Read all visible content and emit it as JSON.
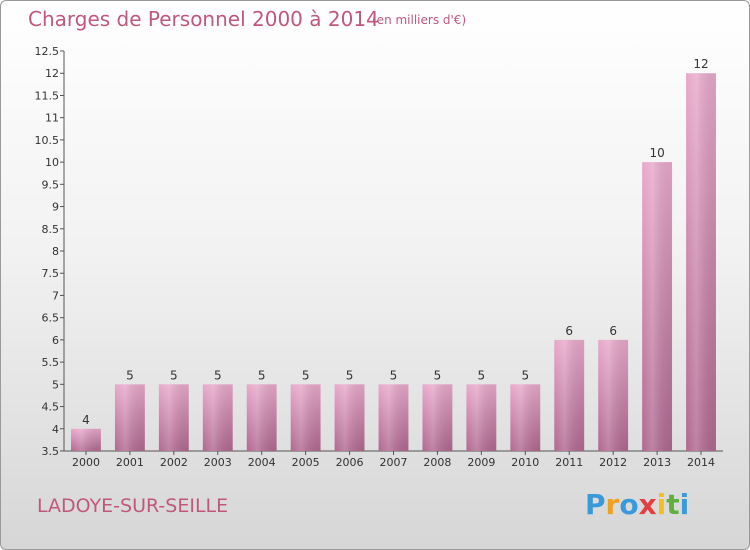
{
  "title": "Charges de Personnel 2000 à 2014",
  "subtitle": "(en milliers d'€)",
  "commune": "LADOYE-SUR-SEILLE",
  "logo": {
    "letters": [
      "P",
      "r",
      "o",
      "x",
      "i",
      "t",
      "i"
    ],
    "colors": [
      "#3a9ad9",
      "#f0a020",
      "#3a9ad9",
      "#e04040",
      "#f0c020",
      "#60b040",
      "#3a9ad9"
    ]
  },
  "colors": {
    "accent": "#c0587a",
    "bar_top": "#e8a9cb",
    "bar_bottom": "#b06890"
  },
  "chart_data": {
    "type": "bar",
    "categories": [
      "2000",
      "2001",
      "2002",
      "2003",
      "2004",
      "2005",
      "2006",
      "2007",
      "2008",
      "2009",
      "2010",
      "2011",
      "2012",
      "2013",
      "2014"
    ],
    "values": [
      4,
      5,
      5,
      5,
      5,
      5,
      5,
      5,
      5,
      5,
      5,
      6,
      6,
      10,
      12
    ],
    "data_labels": [
      "4",
      "5",
      "5",
      "5",
      "5",
      "5",
      "5",
      "5",
      "5",
      "5",
      "5",
      "6",
      "6",
      "10",
      "12"
    ],
    "yticks": [
      "3.5",
      "4",
      "4.5",
      "5",
      "5.5",
      "6",
      "6.5",
      "7",
      "7.5",
      "8",
      "8.5",
      "9",
      "9.5",
      "10",
      "10.5",
      "11",
      "11.5",
      "12",
      "12.5"
    ],
    "ylim": [
      3.5,
      12.5
    ],
    "xlabel": "",
    "ylabel": "",
    "grid": false
  }
}
